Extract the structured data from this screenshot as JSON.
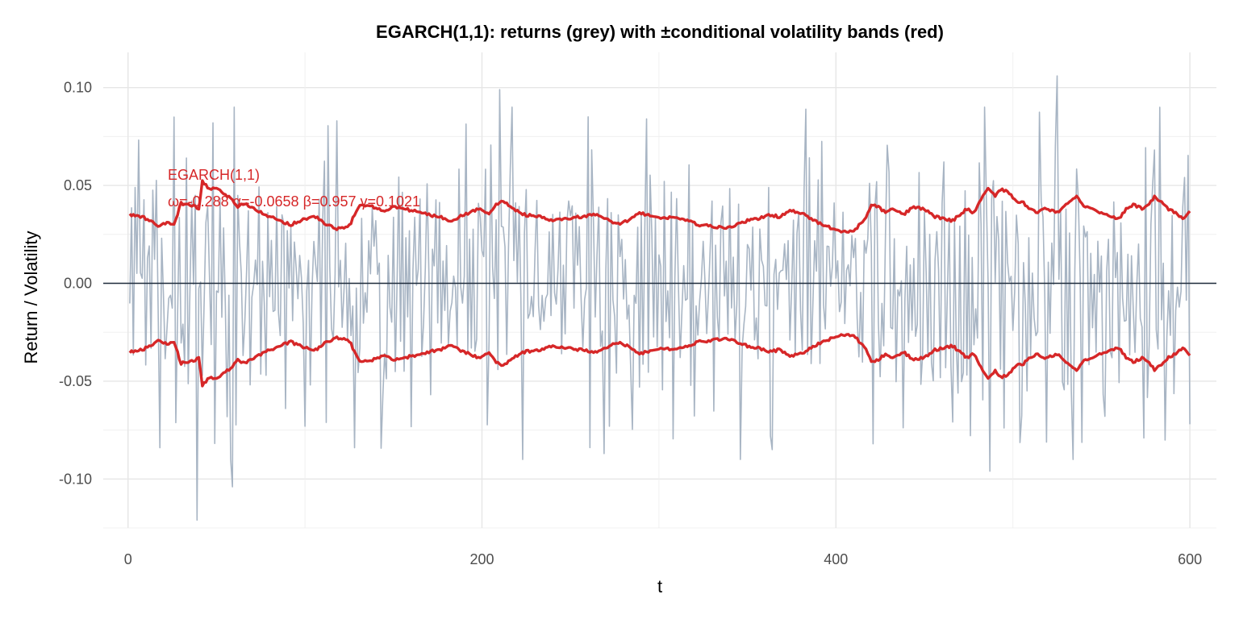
{
  "chart_data": {
    "type": "line",
    "title": "EGARCH(1,1): returns (grey) with ±conditional volatility bands (red)",
    "xlabel": "t",
    "ylabel": "Return / Volatility",
    "xlim": [
      -14,
      615
    ],
    "ylim": [
      -0.125,
      0.118
    ],
    "x_ticks": [
      0,
      200,
      400,
      600
    ],
    "x_tick_labels": [
      "0",
      "200",
      "400",
      "600"
    ],
    "y_ticks": [
      -0.1,
      -0.05,
      0.0,
      0.05,
      0.1
    ],
    "y_tick_labels": [
      "-0.10",
      "-0.05",
      "0.00",
      "0.05",
      "0.10"
    ],
    "grid": true,
    "hline": 0,
    "colors": {
      "returns": "#a8b5c4",
      "bands": "#d62728",
      "zero_line": "#1f2d3d"
    },
    "annotation": {
      "line1": "EGARCH(1,1)",
      "line2": "ω=-0.288  α=-0.0658  β=0.957  γ=0.1021"
    },
    "series": [
      {
        "role": "returns",
        "n": 600,
        "summary": "grey returns, t = 1..600, oscillating roughly between -0.12 and 0.106",
        "extremes": [
          [
            4,
            0.049
          ],
          [
            18,
            -0.084
          ],
          [
            26,
            0.085
          ],
          [
            39,
            -0.121
          ],
          [
            48,
            0.082
          ],
          [
            59,
            -0.104
          ],
          [
            118,
            0.083
          ],
          [
            128,
            -0.084
          ],
          [
            210,
            0.099
          ],
          [
            269,
            -0.087
          ],
          [
            293,
            0.084
          ],
          [
            364,
            -0.085
          ],
          [
            383,
            0.089
          ],
          [
            421,
            -0.082
          ],
          [
            487,
            -0.096
          ],
          [
            525,
            0.106
          ],
          [
            574,
            -0.079
          ],
          [
            600,
            -0.072
          ]
        ]
      },
      {
        "role": "upper_band",
        "points": [
          [
            1,
            0.035
          ],
          [
            8,
            0.034
          ],
          [
            12,
            0.032
          ],
          [
            18,
            0.029
          ],
          [
            22,
            0.031
          ],
          [
            26,
            0.03
          ],
          [
            30,
            0.041
          ],
          [
            34,
            0.04
          ],
          [
            38,
            0.039
          ],
          [
            40,
            0.038
          ],
          [
            42,
            0.052
          ],
          [
            46,
            0.048
          ],
          [
            50,
            0.049
          ],
          [
            54,
            0.045
          ],
          [
            58,
            0.044
          ],
          [
            62,
            0.039
          ],
          [
            66,
            0.041
          ],
          [
            72,
            0.038
          ],
          [
            80,
            0.034
          ],
          [
            86,
            0.032
          ],
          [
            92,
            0.03
          ],
          [
            100,
            0.033
          ],
          [
            106,
            0.034
          ],
          [
            112,
            0.03
          ],
          [
            118,
            0.028
          ],
          [
            122,
            0.028
          ],
          [
            126,
            0.031
          ],
          [
            130,
            0.039
          ],
          [
            136,
            0.04
          ],
          [
            144,
            0.037
          ],
          [
            150,
            0.039
          ],
          [
            156,
            0.038
          ],
          [
            162,
            0.037
          ],
          [
            170,
            0.035
          ],
          [
            176,
            0.034
          ],
          [
            182,
            0.032
          ],
          [
            190,
            0.035
          ],
          [
            198,
            0.038
          ],
          [
            204,
            0.036
          ],
          [
            208,
            0.04
          ],
          [
            212,
            0.042
          ],
          [
            218,
            0.038
          ],
          [
            224,
            0.035
          ],
          [
            232,
            0.034
          ],
          [
            240,
            0.032
          ],
          [
            248,
            0.033
          ],
          [
            256,
            0.034
          ],
          [
            264,
            0.035
          ],
          [
            270,
            0.033
          ],
          [
            276,
            0.03
          ],
          [
            282,
            0.032
          ],
          [
            288,
            0.036
          ],
          [
            294,
            0.035
          ],
          [
            300,
            0.033
          ],
          [
            308,
            0.034
          ],
          [
            316,
            0.032
          ],
          [
            322,
            0.03
          ],
          [
            330,
            0.029
          ],
          [
            338,
            0.028
          ],
          [
            344,
            0.03
          ],
          [
            350,
            0.032
          ],
          [
            356,
            0.033
          ],
          [
            362,
            0.035
          ],
          [
            368,
            0.034
          ],
          [
            374,
            0.037
          ],
          [
            380,
            0.036
          ],
          [
            386,
            0.033
          ],
          [
            392,
            0.03
          ],
          [
            398,
            0.028
          ],
          [
            404,
            0.026
          ],
          [
            410,
            0.027
          ],
          [
            416,
            0.032
          ],
          [
            420,
            0.04
          ],
          [
            424,
            0.039
          ],
          [
            428,
            0.036
          ],
          [
            432,
            0.038
          ],
          [
            438,
            0.035
          ],
          [
            444,
            0.039
          ],
          [
            450,
            0.038
          ],
          [
            456,
            0.034
          ],
          [
            462,
            0.033
          ],
          [
            466,
            0.032
          ],
          [
            470,
            0.035
          ],
          [
            474,
            0.038
          ],
          [
            478,
            0.036
          ],
          [
            482,
            0.043
          ],
          [
            486,
            0.049
          ],
          [
            490,
            0.045
          ],
          [
            494,
            0.048
          ],
          [
            498,
            0.046
          ],
          [
            502,
            0.042
          ],
          [
            506,
            0.041
          ],
          [
            510,
            0.038
          ],
          [
            514,
            0.036
          ],
          [
            518,
            0.039
          ],
          [
            522,
            0.037
          ],
          [
            526,
            0.036
          ],
          [
            530,
            0.04
          ],
          [
            536,
            0.044
          ],
          [
            540,
            0.04
          ],
          [
            546,
            0.037
          ],
          [
            552,
            0.036
          ],
          [
            556,
            0.034
          ],
          [
            560,
            0.033
          ],
          [
            564,
            0.038
          ],
          [
            568,
            0.04
          ],
          [
            574,
            0.038
          ],
          [
            580,
            0.044
          ],
          [
            584,
            0.042
          ],
          [
            588,
            0.038
          ],
          [
            592,
            0.036
          ],
          [
            596,
            0.033
          ],
          [
            600,
            0.037
          ]
        ]
      },
      {
        "role": "lower_band",
        "mirror_of": "upper_band"
      }
    ]
  }
}
